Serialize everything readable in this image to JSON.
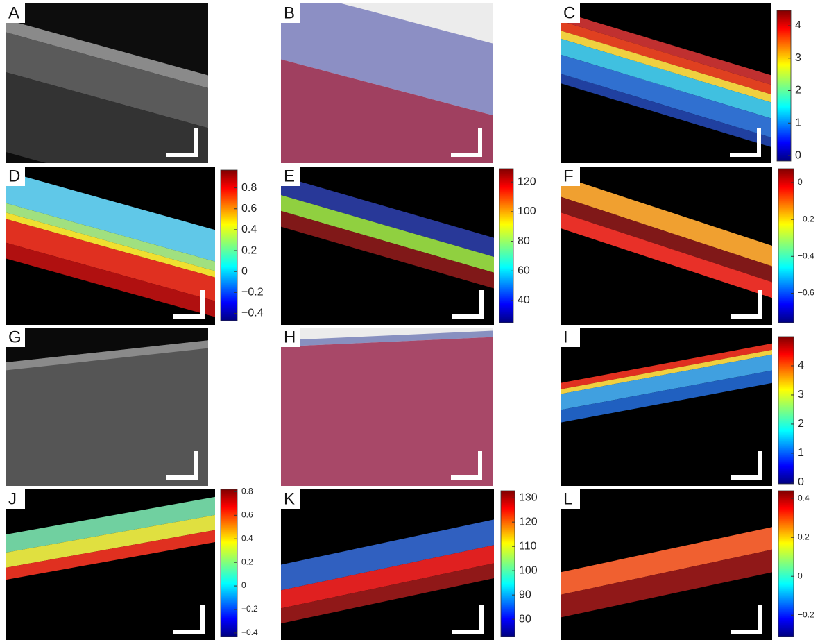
{
  "panels": [
    {
      "label": "A"
    },
    {
      "label": "B"
    },
    {
      "label": "C",
      "colorbar": {
        "lim": [
          -0.17,
          4.47
        ],
        "ticks": [
          0,
          1,
          2,
          3,
          4
        ]
      }
    },
    {
      "label": "D",
      "colorbar": {
        "lim": [
          -0.47,
          0.97
        ],
        "ticks": [
          {
            "value": -0.4,
            "label": "−0.4"
          },
          {
            "value": -0.2,
            "label": "−0.2"
          },
          0,
          0.2,
          0.4,
          0.6,
          0.8
        ]
      }
    },
    {
      "label": "E",
      "colorbar": {
        "lim": [
          25,
          129
        ],
        "ticks": [
          40,
          60,
          80,
          100,
          120
        ]
      }
    },
    {
      "label": "F",
      "colorbar": {
        "lim": [
          -0.76,
          0.075
        ],
        "ticks": [
          {
            "value": -0.6,
            "label": "−0.6"
          },
          {
            "value": -0.4,
            "label": "−0.4"
          },
          {
            "value": -0.2,
            "label": "−0.2"
          },
          0
        ]
      }
    },
    {
      "label": "G"
    },
    {
      "label": "H"
    },
    {
      "label": "I",
      "colorbar": {
        "lim": [
          -0.05,
          5.0
        ],
        "ticks": [
          0,
          1,
          2,
          3,
          4
        ]
      }
    },
    {
      "label": "J",
      "colorbar": {
        "lim": [
          -0.43,
          0.82
        ],
        "ticks": [
          {
            "value": -0.4,
            "label": "−0.4"
          },
          {
            "value": -0.2,
            "label": "−0.2"
          },
          0,
          0.2,
          0.4,
          0.6,
          0.8
        ]
      }
    },
    {
      "label": "K",
      "colorbar": {
        "lim": [
          72.9,
          132.9
        ],
        "ticks": [
          80,
          90,
          100,
          110,
          120,
          130
        ]
      }
    },
    {
      "label": "L",
      "colorbar": {
        "lim": [
          -0.31,
          0.44
        ],
        "ticks": [
          {
            "value": -0.2,
            "label": "−0.2"
          },
          0,
          0.2,
          0.4
        ]
      }
    }
  ]
}
